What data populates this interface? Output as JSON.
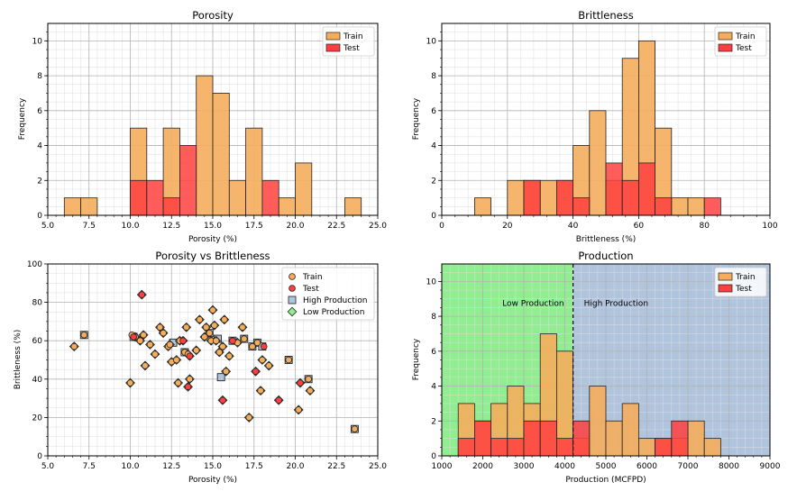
{
  "chart_data": [
    {
      "type": "bar",
      "title": "Porosity",
      "xlabel": "Porosity (%)",
      "ylabel": "Frequency",
      "xlim": [
        5.0,
        25.0
      ],
      "ylim": [
        0,
        11
      ],
      "xticks": [
        "5.0",
        "7.5",
        "10.0",
        "12.5",
        "15.0",
        "17.5",
        "20.0",
        "22.5",
        "25.0"
      ],
      "yticks": [
        "0",
        "2",
        "4",
        "6",
        "8",
        "10"
      ],
      "grid": true,
      "legend": {
        "position": "top-right",
        "entries": [
          "Train",
          "Test"
        ]
      },
      "bin_edges": [
        6.0,
        7.0,
        8.0,
        9.0,
        10.0,
        11.0,
        12.0,
        13.0,
        14.0,
        15.0,
        16.0,
        17.0,
        18.0,
        19.0,
        20.0,
        21.0,
        22.0,
        23.0,
        24.0
      ],
      "series": [
        {
          "name": "Train",
          "color": "#f5ad5c",
          "values": [
            1,
            1,
            0,
            0,
            5,
            0,
            5,
            0,
            8,
            7,
            2,
            5,
            0,
            1,
            3,
            0,
            0,
            1
          ]
        },
        {
          "name": "Test",
          "color": "#ff3f3f",
          "values": [
            0,
            0,
            0,
            0,
            2,
            2,
            1,
            4,
            0,
            0,
            0,
            0,
            2,
            0,
            0,
            0,
            0,
            0
          ]
        }
      ]
    },
    {
      "type": "bar",
      "title": "Brittleness",
      "xlabel": "Brittleness (%)",
      "ylabel": "Frequency",
      "xlim": [
        0,
        100
      ],
      "ylim": [
        0,
        11
      ],
      "xticks": [
        "0",
        "20",
        "40",
        "60",
        "80",
        "100"
      ],
      "yticks": [
        "0",
        "2",
        "4",
        "6",
        "8",
        "10"
      ],
      "grid": true,
      "legend": {
        "position": "top-right",
        "entries": [
          "Train",
          "Test"
        ]
      },
      "bin_edges": [
        10,
        15,
        20,
        25,
        30,
        35,
        40,
        45,
        50,
        55,
        60,
        65,
        70,
        75,
        80,
        85
      ],
      "series": [
        {
          "name": "Train",
          "color": "#f5ad5c",
          "values": [
            1,
            0,
            2,
            2,
            2,
            2,
            4,
            6,
            2,
            9,
            10,
            5,
            1,
            1,
            0
          ]
        },
        {
          "name": "Test",
          "color": "#ff3f3f",
          "values": [
            0,
            0,
            0,
            2,
            0,
            2,
            1,
            0,
            3,
            2,
            3,
            1,
            0,
            0,
            1
          ]
        }
      ]
    },
    {
      "type": "scatter",
      "title": "Porosity vs Brittleness",
      "xlabel": "Porosity (%)",
      "ylabel": "Brittleness (%)",
      "xlim": [
        5.0,
        25.0
      ],
      "ylim": [
        0,
        100
      ],
      "xticks": [
        "5.0",
        "7.5",
        "10.0",
        "12.5",
        "15.0",
        "17.5",
        "20.0",
        "22.5",
        "25.0"
      ],
      "yticks": [
        "0",
        "20",
        "40",
        "60",
        "80",
        "100"
      ],
      "grid": true,
      "legend": {
        "position": "top-right",
        "entries": [
          "Train",
          "Test",
          "High Production",
          "Low Production"
        ]
      },
      "series": [
        {
          "name": "Train",
          "color": "#f5ad5c",
          "points": [
            [
              6.6,
              57
            ],
            [
              7.2,
              63
            ],
            [
              10.0,
              38
            ],
            [
              10.1,
              63
            ],
            [
              10.3,
              62
            ],
            [
              10.6,
              60
            ],
            [
              10.8,
              63
            ],
            [
              10.9,
              47
            ],
            [
              11.2,
              58
            ],
            [
              11.5,
              53
            ],
            [
              11.8,
              67
            ],
            [
              12.0,
              64
            ],
            [
              12.3,
              57
            ],
            [
              12.4,
              58
            ],
            [
              12.5,
              49
            ],
            [
              12.8,
              50
            ],
            [
              12.9,
              38
            ],
            [
              13.0,
              60
            ],
            [
              13.3,
              54
            ],
            [
              13.4,
              67
            ],
            [
              13.5,
              53
            ],
            [
              13.6,
              40
            ],
            [
              14.0,
              55
            ],
            [
              14.2,
              71
            ],
            [
              14.5,
              62
            ],
            [
              14.6,
              67
            ],
            [
              14.8,
              64
            ],
            [
              14.9,
              60
            ],
            [
              15.0,
              76
            ],
            [
              15.1,
              68
            ],
            [
              15.2,
              60
            ],
            [
              15.4,
              54
            ],
            [
              15.6,
              57
            ],
            [
              15.7,
              71
            ],
            [
              15.8,
              44
            ],
            [
              16.0,
              52
            ],
            [
              16.5,
              59
            ],
            [
              16.8,
              67
            ],
            [
              16.9,
              61
            ],
            [
              17.2,
              20
            ],
            [
              17.4,
              57
            ],
            [
              17.7,
              59
            ],
            [
              17.9,
              34
            ],
            [
              18.0,
              50
            ],
            [
              18.4,
              47
            ],
            [
              19.6,
              50
            ],
            [
              20.2,
              24
            ],
            [
              20.8,
              40
            ],
            [
              20.9,
              34
            ],
            [
              23.6,
              14
            ]
          ]
        },
        {
          "name": "Test",
          "color": "#ff3f3f",
          "points": [
            [
              10.2,
              62
            ],
            [
              10.7,
              84
            ],
            [
              13.2,
              60
            ],
            [
              13.5,
              36
            ],
            [
              13.6,
              52
            ],
            [
              15.6,
              29
            ],
            [
              16.2,
              60
            ],
            [
              17.6,
              44
            ],
            [
              18.1,
              57
            ],
            [
              19.0,
              29
            ],
            [
              20.3,
              38
            ]
          ]
        },
        {
          "name": "High Production",
          "color": "#b0c4de",
          "points": [
            [
              7.2,
              63
            ],
            [
              10.2,
              62
            ],
            [
              12.6,
              59
            ],
            [
              13.3,
              54
            ],
            [
              14.8,
              64
            ],
            [
              15.3,
              61
            ],
            [
              15.5,
              41
            ],
            [
              16.2,
              60
            ],
            [
              16.9,
              61
            ],
            [
              17.4,
              57
            ],
            [
              17.7,
              59
            ],
            [
              18.0,
              57
            ],
            [
              19.6,
              50
            ],
            [
              20.8,
              40
            ],
            [
              23.6,
              14
            ]
          ]
        },
        {
          "name": "Low Production",
          "color": "#90ee90",
          "points": [
            [
              6.6,
              57
            ],
            [
              10.0,
              38
            ],
            [
              10.3,
              62
            ],
            [
              10.6,
              60
            ],
            [
              10.7,
              84
            ],
            [
              10.8,
              63
            ],
            [
              10.9,
              47
            ],
            [
              11.2,
              58
            ],
            [
              11.5,
              53
            ],
            [
              11.8,
              67
            ],
            [
              12.0,
              64
            ],
            [
              12.3,
              57
            ],
            [
              12.4,
              58
            ],
            [
              12.5,
              49
            ],
            [
              12.8,
              50
            ],
            [
              12.9,
              38
            ],
            [
              13.0,
              60
            ],
            [
              13.2,
              60
            ],
            [
              13.4,
              67
            ],
            [
              13.5,
              53
            ],
            [
              13.5,
              36
            ],
            [
              13.6,
              40
            ],
            [
              13.6,
              52
            ],
            [
              14.0,
              55
            ],
            [
              14.2,
              71
            ],
            [
              14.5,
              62
            ],
            [
              14.6,
              67
            ],
            [
              14.9,
              60
            ],
            [
              15.0,
              76
            ],
            [
              15.1,
              68
            ],
            [
              15.2,
              60
            ],
            [
              15.4,
              54
            ],
            [
              15.6,
              57
            ],
            [
              15.6,
              29
            ],
            [
              15.7,
              71
            ],
            [
              15.8,
              44
            ],
            [
              16.0,
              52
            ],
            [
              16.5,
              59
            ],
            [
              16.8,
              67
            ],
            [
              17.2,
              20
            ],
            [
              17.6,
              44
            ],
            [
              17.9,
              34
            ],
            [
              18.0,
              50
            ],
            [
              18.4,
              47
            ],
            [
              19.0,
              29
            ],
            [
              20.2,
              24
            ],
            [
              20.3,
              38
            ],
            [
              20.9,
              34
            ]
          ]
        }
      ]
    },
    {
      "type": "bar",
      "title": "Production",
      "xlabel": "Production (MCFPD)",
      "ylabel": "Frequency",
      "xlim": [
        1000,
        9000
      ],
      "ylim": [
        0,
        11
      ],
      "xticks": [
        "1000",
        "2000",
        "3000",
        "4000",
        "5000",
        "6000",
        "7000",
        "8000",
        "9000"
      ],
      "yticks": [
        "0",
        "2",
        "4",
        "6",
        "8",
        "10"
      ],
      "grid": true,
      "legend": {
        "position": "top-right",
        "entries": [
          "Train",
          "Test"
        ]
      },
      "threshold": 4200,
      "regions": [
        {
          "label": "Low Production",
          "from": 1000,
          "to": 4200,
          "color": "#90ee90"
        },
        {
          "label": "High Production",
          "from": 4200,
          "to": 9000,
          "color": "#b0c4de"
        }
      ],
      "bin_edges": [
        1400,
        1800,
        2200,
        2600,
        3000,
        3400,
        3800,
        4200,
        4600,
        5000,
        5400,
        5800,
        6200,
        6600,
        7000,
        7400,
        7800
      ],
      "series": [
        {
          "name": "Train",
          "color": "#f5ad5c",
          "values": [
            3,
            2,
            3,
            4,
            3,
            7,
            6,
            1,
            4,
            2,
            3,
            1,
            1,
            1,
            2,
            1
          ]
        },
        {
          "name": "Test",
          "color": "#ff3f3f",
          "values": [
            1,
            2,
            1,
            1,
            2,
            2,
            1,
            2,
            0,
            0,
            0,
            0,
            1,
            2,
            0,
            0
          ]
        }
      ]
    }
  ]
}
